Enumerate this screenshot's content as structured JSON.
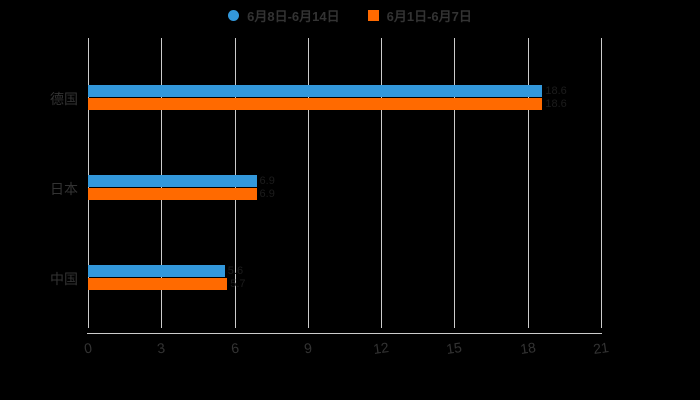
{
  "page": {
    "background": "#000000"
  },
  "legend": {
    "items": [
      {
        "label": "6月8日-6月14日",
        "marker": "circle",
        "color": "#3398db"
      },
      {
        "label": "6月1日-6月7日",
        "marker": "square",
        "color": "#ff6a00"
      }
    ]
  },
  "chart_data": {
    "type": "bar",
    "orientation": "horizontal",
    "title": "",
    "categories": [
      "德国",
      "日本",
      "中国"
    ],
    "series": [
      {
        "name": "6月8日-6月14日",
        "color": "#3398db",
        "values": [
          18.6,
          6.9,
          5.6
        ]
      },
      {
        "name": "6月1日-6月7日",
        "color": "#ff6a00",
        "values": [
          18.6,
          6.9,
          5.7
        ]
      }
    ],
    "xlabel": "",
    "ylabel": "",
    "xlim": [
      0,
      21
    ],
    "x_ticks": [
      0,
      3,
      6,
      9,
      12,
      15,
      18,
      21
    ],
    "grid": true,
    "legend_position": "top-center",
    "colors": {
      "axis": "#cccccc",
      "gridline": "#cccccc",
      "text": "#333333",
      "bar_label": "#1c1c1c",
      "background": "#000000"
    }
  }
}
